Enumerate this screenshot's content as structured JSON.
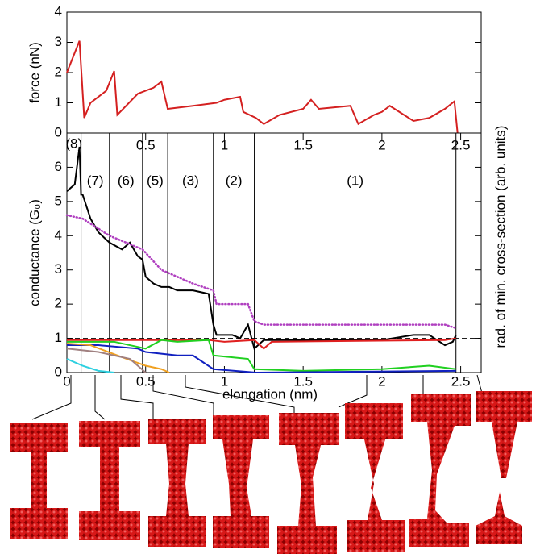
{
  "chart_data": [
    {
      "type": "line",
      "y_label": "force (nN)",
      "xlim": [
        0,
        2.63
      ],
      "ylim": [
        0,
        4
      ],
      "yticks": [
        0,
        1,
        2,
        3,
        4
      ],
      "series": [
        {
          "color": "#d42020",
          "x": [
            0,
            0.08,
            0.11,
            0.15,
            0.25,
            0.3,
            0.32,
            0.45,
            0.55,
            0.6,
            0.64,
            0.8,
            0.95,
            1.0,
            1.1,
            1.12,
            1.2,
            1.25,
            1.35,
            1.5,
            1.55,
            1.6,
            1.8,
            1.85,
            1.95,
            2.0,
            2.05,
            2.2,
            2.3,
            2.4,
            2.46,
            2.48
          ],
          "values": [
            2.0,
            3.05,
            0.5,
            1.0,
            1.4,
            2.05,
            0.6,
            1.3,
            1.5,
            1.7,
            0.8,
            0.9,
            1.0,
            1.1,
            1.2,
            0.7,
            0.5,
            0.3,
            0.6,
            0.8,
            1.1,
            0.8,
            0.9,
            0.3,
            0.6,
            0.7,
            0.9,
            0.4,
            0.5,
            0.8,
            1.05,
            0.0
          ]
        }
      ]
    },
    {
      "type": "line",
      "x_label": "elongation (nm)",
      "y_label": "conductance (G₀)",
      "y2_label": "rad. of min. cross-section (arb. units)",
      "xlim": [
        0,
        2.63
      ],
      "xticks": [
        0,
        0.5,
        1,
        1.5,
        2,
        2.5
      ],
      "ylim": [
        0,
        7
      ],
      "yticks": [
        0,
        1,
        2,
        3,
        4,
        5,
        6
      ],
      "y2lim": [
        0,
        7
      ],
      "reference_line": 1,
      "boundaries": [
        0.09,
        0.27,
        0.48,
        0.64,
        0.93,
        1.19,
        2.47
      ],
      "region_labels": [
        "(8)",
        "(7)",
        "(6)",
        "(5)",
        "(3)",
        "(2)",
        "(1)"
      ],
      "series": [
        {
          "color": "#000000",
          "x": [
            0,
            0.05,
            0.08,
            0.09,
            0.1,
            0.15,
            0.2,
            0.27,
            0.35,
            0.4,
            0.45,
            0.48,
            0.5,
            0.55,
            0.6,
            0.65,
            0.7,
            0.8,
            0.9,
            0.93,
            0.95,
            1.05,
            1.1,
            1.15,
            1.19,
            1.25,
            1.5,
            2.0,
            2.2,
            2.3,
            2.4,
            2.45,
            2.47
          ],
          "values": [
            5.3,
            5.5,
            6.6,
            5.2,
            5.2,
            4.5,
            4.1,
            3.8,
            3.6,
            3.8,
            3.4,
            3.3,
            2.8,
            2.6,
            2.5,
            2.5,
            2.4,
            2.4,
            2.3,
            1.4,
            1.1,
            1.1,
            1.0,
            1.4,
            0.7,
            0.95,
            0.95,
            0.95,
            1.1,
            1.1,
            0.8,
            0.9,
            1.1
          ]
        },
        {
          "color": "#b040c0",
          "dotted": true,
          "axis": "y2",
          "x": [
            0,
            0.1,
            0.27,
            0.48,
            0.6,
            0.8,
            0.93,
            0.95,
            1.15,
            1.19,
            1.25,
            2.4,
            2.47
          ],
          "values": [
            4.6,
            4.5,
            4.0,
            3.6,
            3.0,
            2.6,
            2.4,
            2.0,
            2.0,
            1.5,
            1.4,
            1.4,
            1.3
          ]
        },
        {
          "color": "#e02020",
          "x": [
            0,
            0.5,
            0.9,
            1.0,
            1.19,
            1.25,
            1.3,
            2.4,
            2.47
          ],
          "values": [
            0.95,
            0.95,
            0.95,
            0.9,
            0.95,
            0.7,
            0.9,
            0.95,
            1.0
          ]
        },
        {
          "color": "#20d020",
          "x": [
            0,
            0.3,
            0.5,
            0.6,
            0.7,
            0.9,
            0.93,
            1.15,
            1.19,
            1.5,
            2.0,
            2.3,
            2.47
          ],
          "values": [
            0.9,
            0.9,
            0.7,
            0.95,
            0.9,
            0.95,
            0.5,
            0.4,
            0.1,
            0.05,
            0.1,
            0.2,
            0.1
          ]
        },
        {
          "color": "#1020c0",
          "x": [
            0,
            0.2,
            0.45,
            0.5,
            0.6,
            0.7,
            0.8,
            0.93,
            1.2,
            2.47
          ],
          "values": [
            0.8,
            0.8,
            0.7,
            0.6,
            0.55,
            0.5,
            0.5,
            0.1,
            0.0,
            0.05
          ]
        },
        {
          "color": "#f0a020",
          "x": [
            0,
            0.15,
            0.35,
            0.5,
            0.6,
            0.65
          ],
          "values": [
            0.85,
            0.8,
            0.45,
            0.2,
            0.1,
            0.0
          ]
        },
        {
          "color": "#a08080",
          "x": [
            0,
            0.2,
            0.4,
            0.5
          ],
          "values": [
            0.7,
            0.6,
            0.4,
            0.0
          ]
        },
        {
          "color": "#30d0e0",
          "x": [
            0,
            0.1,
            0.2,
            0.3
          ],
          "values": [
            0.4,
            0.2,
            0.05,
            0.0
          ]
        }
      ]
    }
  ]
}
